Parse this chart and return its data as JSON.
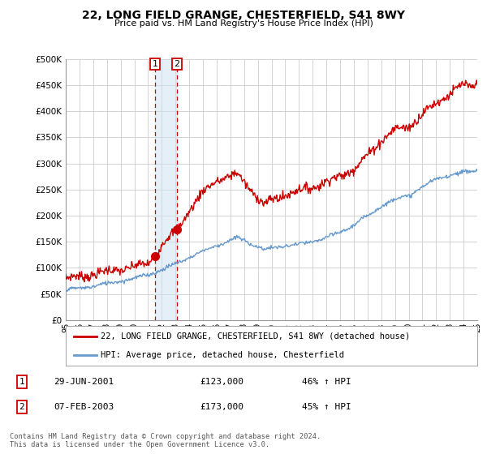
{
  "title": "22, LONG FIELD GRANGE, CHESTERFIELD, S41 8WY",
  "subtitle": "Price paid vs. HM Land Registry's House Price Index (HPI)",
  "ylim": [
    0,
    500000
  ],
  "yticks": [
    0,
    50000,
    100000,
    150000,
    200000,
    250000,
    300000,
    350000,
    400000,
    450000,
    500000
  ],
  "x_start_year": 1995,
  "x_end_year": 2025,
  "line1_color": "#cc0000",
  "line2_color": "#6699cc",
  "vline_color": "#cc0000",
  "vbox_color": "#cce0f0",
  "marker1_year": 2001.5,
  "marker2_year": 2003.1,
  "marker1_value": 123000,
  "marker2_value": 173000,
  "legend1_label": "22, LONG FIELD GRANGE, CHESTERFIELD, S41 8WY (detached house)",
  "legend2_label": "HPI: Average price, detached house, Chesterfield",
  "table_rows": [
    {
      "num": "1",
      "date": "29-JUN-2001",
      "price": "£123,000",
      "change": "46% ↑ HPI"
    },
    {
      "num": "2",
      "date": "07-FEB-2003",
      "price": "£173,000",
      "change": "45% ↑ HPI"
    }
  ],
  "footnote": "Contains HM Land Registry data © Crown copyright and database right 2024.\nThis data is licensed under the Open Government Licence v3.0.",
  "background_color": "#ffffff",
  "grid_color": "#cccccc"
}
